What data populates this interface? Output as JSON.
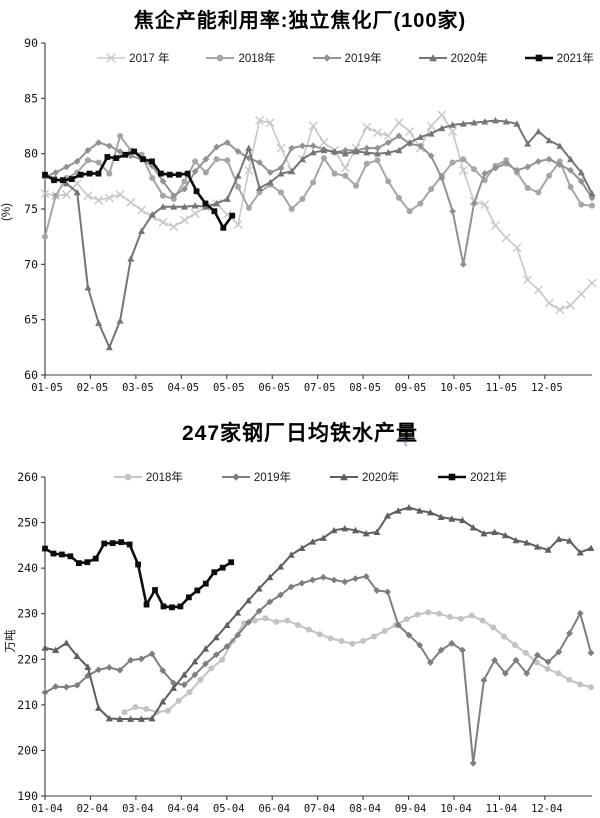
{
  "page": {
    "background": "#ffffff",
    "axis_color": "#3c3c3c",
    "tick_label_color": "#111111"
  },
  "decoration": {
    "title_artifact": "飞"
  },
  "chart_data": [
    {
      "type": "line",
      "title": "焦企产能利用率:独立焦化厂(100家)",
      "ylabel": "(%)",
      "ylim": [
        60,
        90
      ],
      "yticks": [
        60,
        65,
        70,
        75,
        80,
        85,
        90
      ],
      "xtick_labels": [
        "01-05",
        "02-05",
        "03-05",
        "04-05",
        "05-05",
        "06-05",
        "07-05",
        "08-05",
        "09-05",
        "10-05",
        "11-05",
        "12-05"
      ],
      "grid": false,
      "legend_position": "top",
      "series": [
        {
          "name": "2017 年",
          "color": "#c7c7c7",
          "marker": "x",
          "start_week": 0,
          "end_week": 52.3,
          "values": [
            76.4,
            76.2,
            76.3,
            77.3,
            76.2,
            75.8,
            76.0,
            76.3,
            75.6,
            74.9,
            74.3,
            73.8,
            73.4,
            74.0,
            74.6,
            75.2,
            75.5,
            74.5,
            73.6,
            78.5,
            83.0,
            82.8,
            80.5,
            78.5,
            79.5,
            82.5,
            81.0,
            80.3,
            78.7,
            80.5,
            82.4,
            81.9,
            81.6,
            82.8,
            82.0,
            80.5,
            82.5,
            83.5,
            82.0,
            78.5,
            75.7,
            75.4,
            73.5,
            72.4,
            71.5,
            68.6,
            67.7,
            66.5,
            65.9,
            66.3,
            67.3,
            68.3
          ]
        },
        {
          "name": "2018年",
          "color": "#a6a6a6",
          "marker": "circle",
          "start_week": 0,
          "end_week": 52.3,
          "values": [
            72.5,
            76.2,
            77.8,
            78.3,
            79.4,
            79.2,
            78.2,
            81.6,
            80.3,
            79.9,
            77.8,
            76.2,
            75.9,
            77.5,
            79.3,
            78.3,
            79.5,
            79.4,
            77.0,
            75.1,
            76.5,
            77.2,
            76.5,
            75.0,
            75.9,
            77.4,
            79.6,
            78.2,
            78.0,
            77.1,
            79.1,
            79.4,
            77.5,
            76.0,
            74.8,
            75.5,
            76.8,
            78.0,
            79.2,
            79.5,
            78.6,
            77.6,
            78.9,
            79.4,
            78.3,
            76.9,
            76.5,
            78.0,
            79.3,
            77.0,
            75.4,
            75.3
          ]
        },
        {
          "name": "2019年",
          "color": "#929292",
          "marker": "diamond",
          "start_week": 0,
          "end_week": 52.3,
          "values": [
            77.9,
            78.3,
            78.8,
            79.3,
            80.3,
            81.0,
            80.7,
            80.2,
            79.8,
            79.5,
            78.9,
            77.5,
            76.2,
            76.8,
            78.4,
            79.5,
            80.6,
            81.0,
            80.2,
            79.6,
            79.2,
            78.3,
            78.7,
            80.5,
            80.7,
            80.7,
            80.4,
            80.1,
            80.3,
            80.3,
            80.5,
            80.5,
            81.0,
            81.6,
            80.9,
            80.7,
            79.8,
            77.8,
            74.8,
            70.0,
            75.5,
            78.2,
            78.7,
            79.1,
            78.5,
            78.8,
            79.3,
            79.5,
            79.0,
            78.5,
            77.5,
            76.0
          ]
        },
        {
          "name": "2020年",
          "color": "#757575",
          "marker": "triangle",
          "start_week": 0,
          "end_week": 52.3,
          "values": [
            78.0,
            77.8,
            77.3,
            76.5,
            67.9,
            64.7,
            62.5,
            64.9,
            70.5,
            73.0,
            74.5,
            75.2,
            75.2,
            75.2,
            75.3,
            75.2,
            75.5,
            75.9,
            78.0,
            80.5,
            76.9,
            77.4,
            78.2,
            78.4,
            79.5,
            80.1,
            80.3,
            80.2,
            80.0,
            80.2,
            80.1,
            80.0,
            80.1,
            80.3,
            81.0,
            81.5,
            81.8,
            82.3,
            82.6,
            82.7,
            82.8,
            82.9,
            83.0,
            82.9,
            82.7,
            80.9,
            82.0,
            81.2,
            80.7,
            79.5,
            78.3,
            76.4
          ]
        },
        {
          "name": "2021年",
          "color": "#0d0d0d",
          "marker": "square",
          "start_week": 0,
          "end_week": 17.9,
          "values": [
            78.1,
            77.6,
            77.6,
            77.7,
            78.1,
            78.2,
            78.2,
            79.7,
            79.6,
            79.9,
            80.2,
            79.5,
            79.3,
            78.2,
            78.1,
            78.1,
            78.2,
            76.6,
            75.5,
            74.8,
            73.3,
            74.4
          ]
        }
      ]
    },
    {
      "type": "line",
      "title": "247家钢厂日均铁水产量",
      "ylabel": "万吨",
      "ylim": [
        190,
        260
      ],
      "yticks": [
        190,
        200,
        210,
        220,
        230,
        240,
        250,
        260
      ],
      "xtick_labels": [
        "01-04",
        "02-04",
        "03-04",
        "04-04",
        "05-04",
        "06-04",
        "07-04",
        "08-04",
        "09-04",
        "10-04",
        "11-04",
        "12-04"
      ],
      "grid": false,
      "legend_position": "top",
      "series": [
        {
          "name": "2018年",
          "color": "#c3c3c3",
          "marker": "circle",
          "start_week": 7.6,
          "end_week": 52.2,
          "values": [
            208.4,
            209.5,
            209.1,
            208.4,
            208.7,
            210.9,
            212.8,
            215.5,
            218.0,
            219.9,
            224.0,
            227.9,
            228.5,
            229.0,
            228.2,
            228.5,
            227.5,
            226.5,
            225.5,
            224.6,
            224.0,
            223.4,
            224.0,
            225.0,
            226.2,
            227.5,
            228.8,
            229.8,
            230.3,
            230.0,
            229.3,
            228.9,
            229.6,
            228.5,
            227.0,
            225.0,
            223.1,
            221.4,
            219.3,
            217.9,
            216.9,
            215.5,
            214.5,
            213.9
          ]
        },
        {
          "name": "2019年",
          "color": "#7e7e7e",
          "marker": "diamond",
          "start_week": 0,
          "end_week": 52.2,
          "values": [
            212.7,
            214.0,
            213.9,
            214.3,
            216.4,
            217.7,
            218.2,
            217.6,
            219.8,
            220.1,
            221.2,
            217.5,
            214.8,
            214.4,
            216.6,
            219.0,
            221.0,
            222.8,
            225.3,
            228.1,
            230.6,
            232.6,
            234.1,
            235.9,
            236.7,
            237.4,
            238.0,
            237.4,
            237.0,
            237.7,
            238.2,
            235.1,
            234.8,
            227.5,
            225.3,
            223.1,
            219.3,
            222.0,
            223.5,
            222.0,
            197.2,
            215.4,
            219.8,
            216.9,
            219.8,
            216.9,
            220.9,
            219.4,
            221.6,
            225.7,
            230.1,
            221.4
          ]
        },
        {
          "name": "2020年",
          "color": "#5f5f5f",
          "marker": "triangle",
          "start_week": 0,
          "end_week": 52.2,
          "values": [
            222.5,
            222.0,
            223.6,
            220.7,
            218.3,
            209.3,
            207.0,
            206.9,
            206.9,
            206.9,
            207.0,
            210.7,
            213.7,
            216.6,
            219.5,
            222.3,
            224.8,
            227.5,
            230.2,
            232.9,
            235.5,
            238.0,
            240.3,
            242.9,
            244.4,
            245.8,
            246.6,
            248.3,
            248.7,
            248.3,
            247.6,
            247.9,
            251.5,
            252.6,
            253.3,
            252.6,
            252.2,
            251.2,
            250.8,
            250.5,
            248.9,
            247.6,
            247.9,
            247.2,
            246.1,
            245.6,
            244.7,
            244.0,
            246.4,
            246.0,
            243.4,
            244.4
          ]
        },
        {
          "name": "2021年",
          "color": "#0d0d0d",
          "marker": "square",
          "start_week": 0,
          "end_week": 17.8,
          "values": [
            244.3,
            243.2,
            243.0,
            242.6,
            241.1,
            241.3,
            242.1,
            245.4,
            245.5,
            245.7,
            245.2,
            240.8,
            232.0,
            235.2,
            231.6,
            231.4,
            231.6,
            233.6,
            235.1,
            236.6,
            239.1,
            240.1,
            241.3
          ]
        }
      ]
    }
  ]
}
